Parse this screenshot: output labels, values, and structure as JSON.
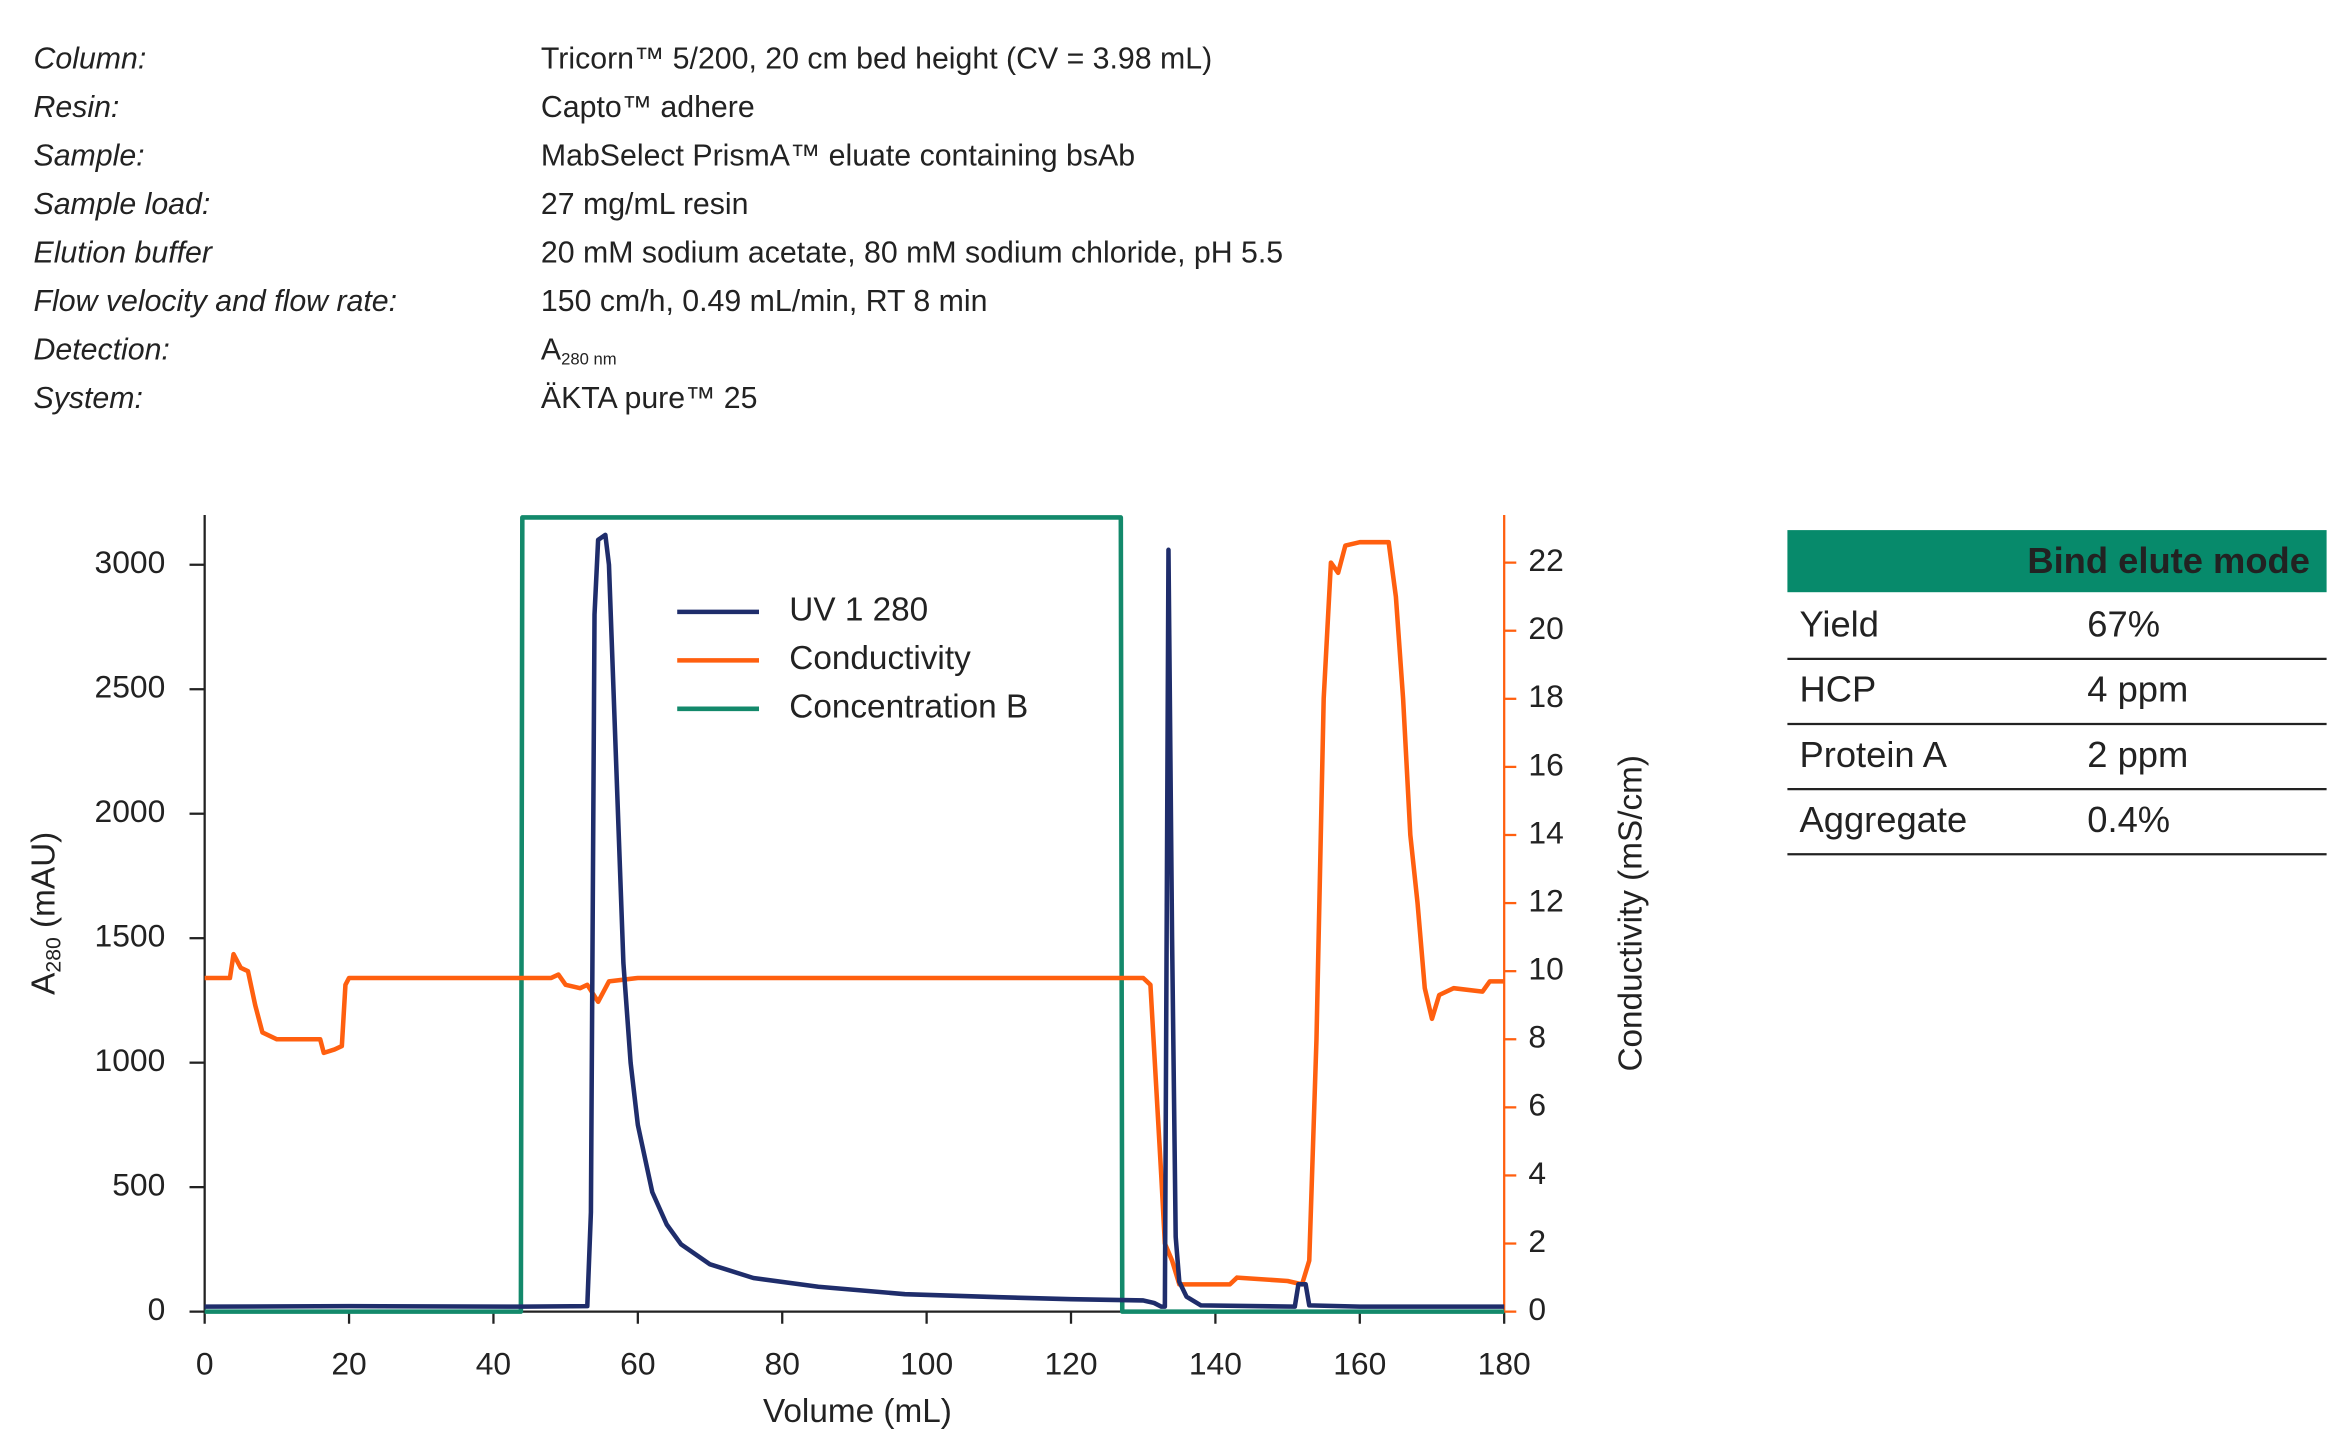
{
  "header": {
    "rows": [
      {
        "label": "Column:",
        "value": "Tricorn™ 5/200, 20 cm bed height (CV = 3.98 mL)"
      },
      {
        "label": "Resin:",
        "value": "Capto™ adhere"
      },
      {
        "label": "Sample:",
        "value": "MabSelect PrismA™ eluate containing bsAb"
      },
      {
        "label": "Sample load:",
        "value": "27 mg/mL resin"
      },
      {
        "label": "Elution buffer",
        "value": "20 mM sodium acetate, 80 mM sodium chloride, pH 5.5"
      },
      {
        "label": "Flow velocity and flow rate:",
        "value": "150 cm/h, 0.49 mL/min, RT 8 min"
      },
      {
        "label": "Detection:",
        "value": {
          "text": "A",
          "subscript": "280 nm"
        }
      },
      {
        "label": "System:",
        "value": "ÄKTA pure™ 25"
      }
    ]
  },
  "chart_data": {
    "type": "line",
    "x_label": "Volume (mL)",
    "y_label": {
      "text": "A",
      "subscript": "280",
      "suffix": " (mAU)"
    },
    "y2_label": "Conductivity (mS/cm)",
    "xlim": [
      0,
      180
    ],
    "xticks": [
      0,
      20,
      40,
      60,
      80,
      100,
      120,
      140,
      160,
      180
    ],
    "ylim": [
      0,
      3200
    ],
    "yticks": [
      0,
      500,
      1000,
      1500,
      2000,
      2500,
      3000
    ],
    "y2lim": [
      0,
      23.4
    ],
    "y2ticks": [
      0,
      2,
      4,
      6,
      8,
      10,
      12,
      14,
      16,
      18,
      20,
      22
    ],
    "y2_color": "#ff5f0f",
    "legend": "top",
    "grid": false,
    "series": [
      {
        "name": "UV 1 280",
        "color": "#1f2d6b",
        "axis": "y",
        "x": [
          0,
          20,
          44,
          53,
          53.5,
          54,
          54.5,
          55.5,
          56,
          57,
          58,
          59,
          60,
          62,
          64,
          66,
          70,
          76,
          85,
          97,
          110,
          120,
          130,
          131.5,
          132.5,
          133,
          133.5,
          134,
          134.5,
          135,
          136,
          138,
          151,
          151.5,
          152.5,
          153,
          160,
          180
        ],
        "values": [
          20,
          22,
          20,
          22,
          400,
          2800,
          3100,
          3120,
          3000,
          2200,
          1400,
          1000,
          750,
          480,
          350,
          270,
          190,
          135,
          100,
          70,
          58,
          50,
          45,
          35,
          20,
          20,
          3060,
          1500,
          300,
          120,
          60,
          25,
          20,
          110,
          110,
          25,
          20,
          20
        ]
      },
      {
        "name": "Conductivity",
        "color": "#ff5f0f",
        "axis": "y2",
        "x": [
          0,
          3.5,
          4,
          5,
          6,
          7,
          8,
          10,
          16,
          16.5,
          18,
          19,
          19.5,
          20,
          48,
          49,
          50,
          52,
          53,
          54.5,
          56,
          60,
          130,
          131,
          132.5,
          133,
          134,
          135,
          142,
          143,
          150,
          152,
          153,
          154,
          155,
          156,
          157,
          158,
          160,
          164,
          165,
          166,
          167,
          168,
          169,
          170,
          171,
          173,
          177,
          178,
          180
        ],
        "values": [
          9.8,
          9.8,
          10.5,
          10.1,
          10,
          9,
          8.2,
          8.0,
          8.0,
          7.6,
          7.7,
          7.8,
          9.6,
          9.8,
          9.8,
          9.9,
          9.6,
          9.5,
          9.6,
          9.1,
          9.7,
          9.8,
          9.8,
          9.6,
          4,
          2,
          1.5,
          0.8,
          0.8,
          1,
          0.9,
          0.8,
          1.5,
          8,
          18,
          22,
          21.7,
          22.5,
          22.6,
          22.6,
          21,
          18,
          14,
          12,
          9.5,
          8.6,
          9.3,
          9.5,
          9.4,
          9.7,
          9.7
        ]
      },
      {
        "name": "Concentration B",
        "color": "#13896b",
        "axis": "y",
        "x": [
          0,
          43.8,
          44,
          126.9,
          127.1,
          180
        ],
        "values": [
          0,
          0,
          3190,
          3190,
          0,
          0
        ]
      }
    ]
  },
  "table": {
    "header": "Bind elute mode",
    "header_color": "#078a6b",
    "rows": [
      [
        "Yield",
        "67%"
      ],
      [
        "HCP",
        "4 ppm"
      ],
      [
        "Protein A",
        "2 ppm"
      ],
      [
        "Aggregate",
        "0.4%"
      ]
    ]
  }
}
